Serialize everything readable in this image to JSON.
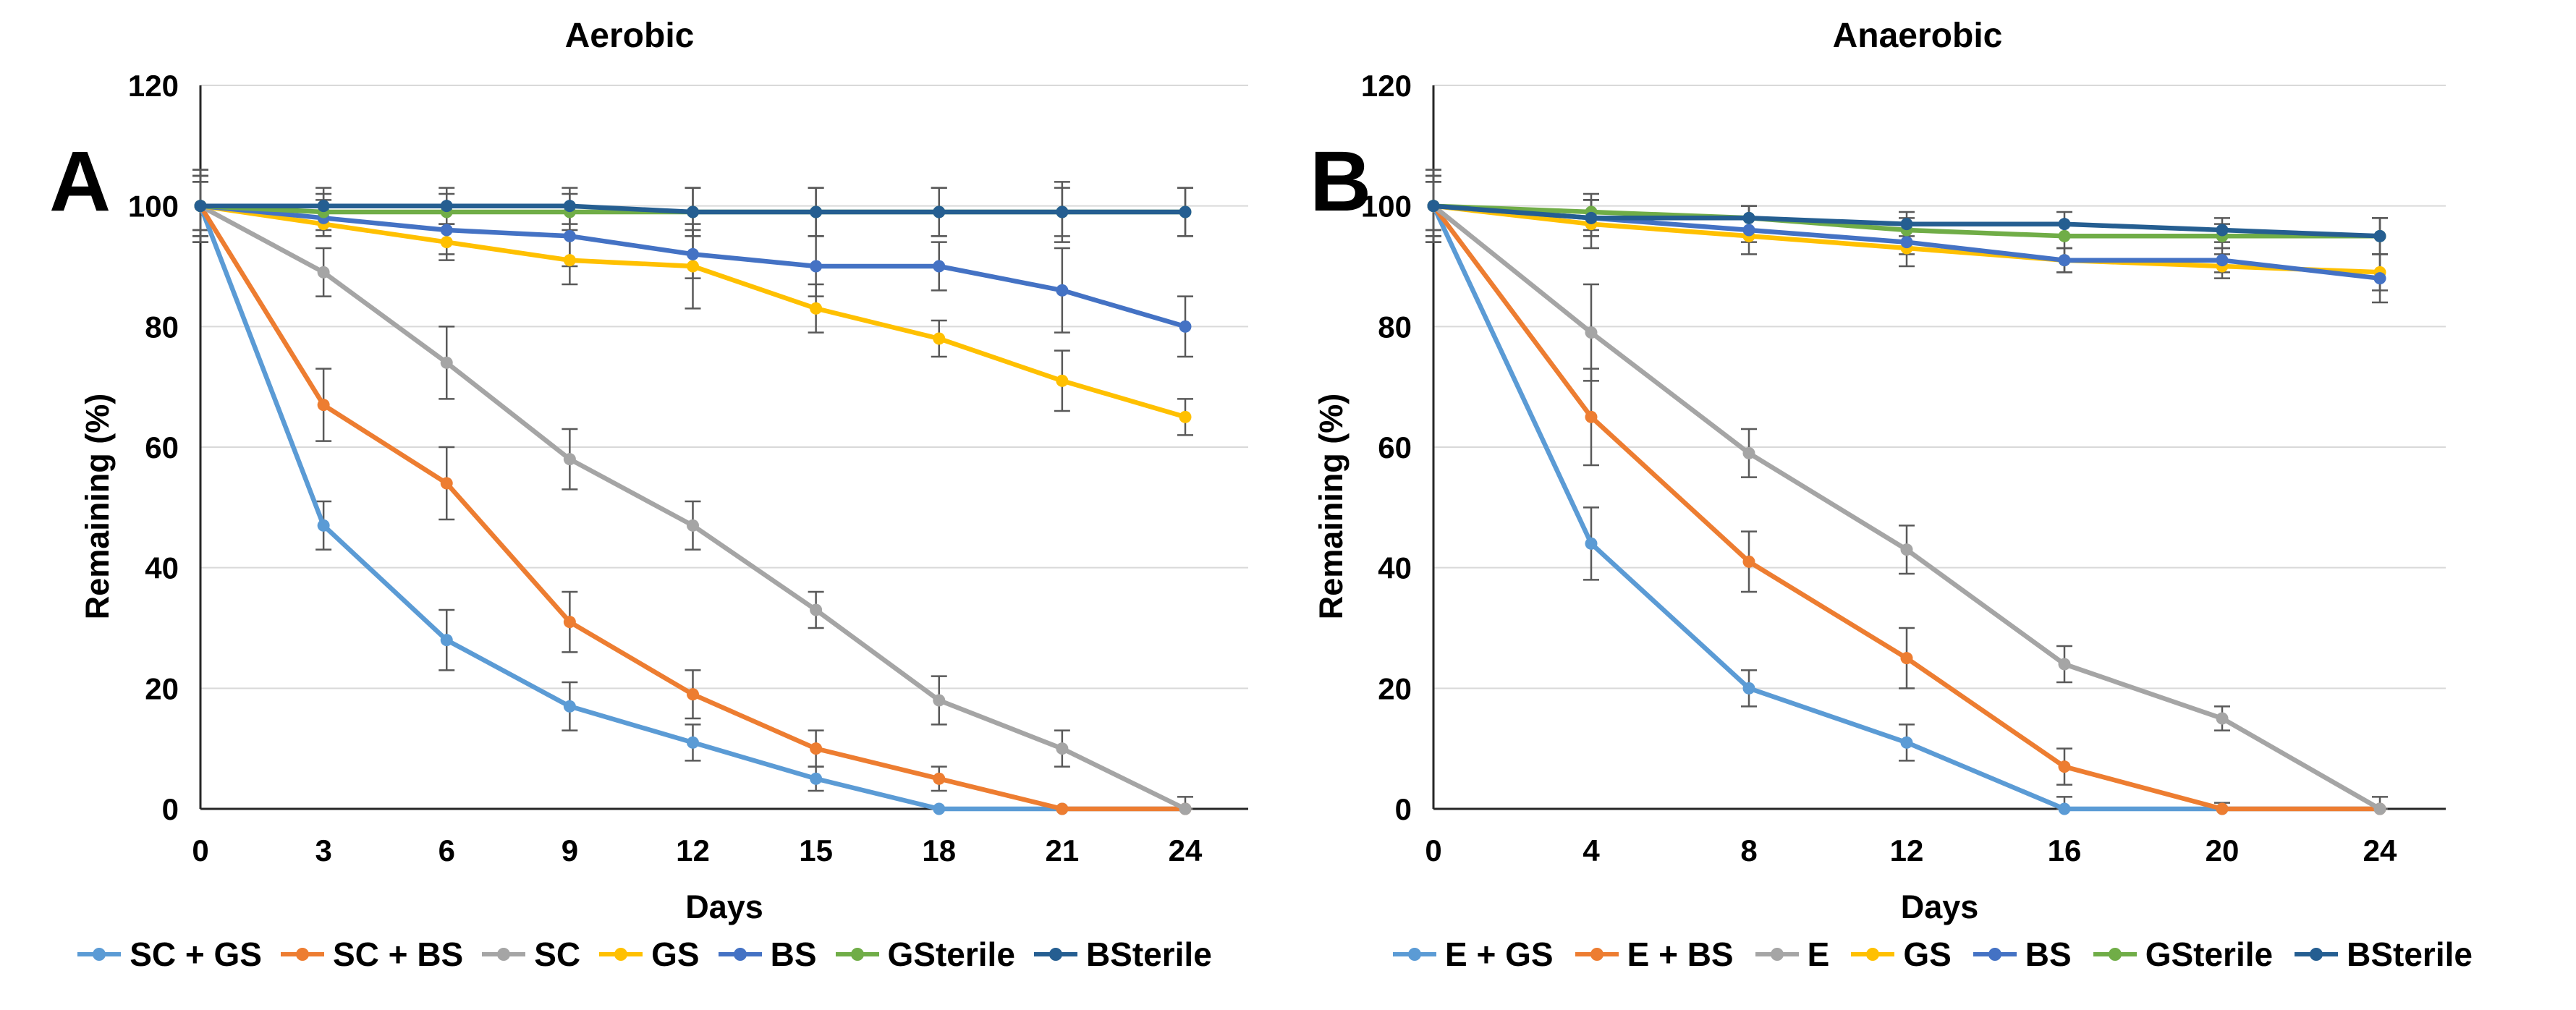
{
  "figure": {
    "background": "#ffffff",
    "error_bar_color": "#595959",
    "gridline_color": "#d9d9d9",
    "axis_color": "#262626"
  },
  "chart_data": [
    {
      "type": "line",
      "panel_label": "A",
      "title": "Aerobic",
      "xlabel": "Days",
      "ylabel": "Remaining (%)",
      "x": [
        0,
        3,
        6,
        9,
        12,
        15,
        18,
        21,
        24
      ],
      "xticks": [
        0,
        3,
        6,
        9,
        12,
        15,
        18,
        21,
        24
      ],
      "ylim": [
        0,
        120
      ],
      "yticks": [
        0,
        20,
        40,
        60,
        80,
        100,
        120
      ],
      "grid": "horizontal",
      "legend_position": "bottom",
      "series": [
        {
          "name": "SC + GS",
          "color": "#5B9BD5",
          "values": [
            100,
            47,
            28,
            17,
            11,
            5,
            0,
            0,
            0
          ],
          "errors": [
            6,
            4,
            5,
            4,
            3,
            2,
            0,
            0,
            0
          ]
        },
        {
          "name": "SC + BS",
          "color": "#ED7D31",
          "values": [
            100,
            67,
            54,
            31,
            19,
            10,
            5,
            0,
            0
          ],
          "errors": [
            6,
            6,
            6,
            5,
            4,
            3,
            2,
            0,
            0
          ]
        },
        {
          "name": "SC",
          "color": "#A5A5A5",
          "values": [
            100,
            89,
            74,
            58,
            47,
            33,
            18,
            10,
            0
          ],
          "errors": [
            5,
            4,
            6,
            5,
            4,
            3,
            4,
            3,
            2
          ]
        },
        {
          "name": "GS",
          "color": "#FFC000",
          "values": [
            100,
            97,
            94,
            91,
            90,
            83,
            78,
            71,
            65
          ],
          "errors": [
            5,
            2,
            3,
            4,
            7,
            4,
            3,
            5,
            3
          ]
        },
        {
          "name": "BS",
          "color": "#4472C4",
          "values": [
            100,
            98,
            96,
            95,
            92,
            90,
            90,
            86,
            80
          ],
          "errors": [
            5,
            3,
            4,
            5,
            4,
            5,
            4,
            7,
            5
          ]
        },
        {
          "name": "GSterile",
          "color": "#70AD47",
          "values": [
            100,
            99,
            99,
            99,
            99,
            99,
            99,
            99,
            99
          ],
          "errors": [
            4,
            3,
            3,
            3,
            4,
            4,
            4,
            4,
            4
          ]
        },
        {
          "name": "BSterile",
          "color": "#255E91",
          "values": [
            100,
            100,
            100,
            100,
            99,
            99,
            99,
            99,
            99
          ],
          "errors": [
            4,
            3,
            3,
            3,
            4,
            4,
            4,
            5,
            4
          ]
        }
      ]
    },
    {
      "type": "line",
      "panel_label": "B",
      "title": "Anaerobic",
      "xlabel": "Days",
      "ylabel": "Remaining (%)",
      "x": [
        0,
        4,
        8,
        12,
        16,
        20,
        24
      ],
      "xticks": [
        0,
        4,
        8,
        12,
        16,
        20,
        24
      ],
      "ylim": [
        0,
        120
      ],
      "yticks": [
        0,
        20,
        40,
        60,
        80,
        100,
        120
      ],
      "grid": "horizontal",
      "legend_position": "bottom",
      "series": [
        {
          "name": "E + GS",
          "color": "#5B9BD5",
          "values": [
            100,
            44,
            20,
            11,
            0,
            0,
            0
          ],
          "errors": [
            6,
            6,
            3,
            3,
            2,
            0,
            0
          ]
        },
        {
          "name": "E + BS",
          "color": "#ED7D31",
          "values": [
            100,
            65,
            41,
            25,
            7,
            0,
            0
          ],
          "errors": [
            6,
            8,
            5,
            5,
            3,
            1,
            0
          ]
        },
        {
          "name": "E",
          "color": "#A5A5A5",
          "values": [
            100,
            79,
            59,
            43,
            24,
            15,
            0
          ],
          "errors": [
            5,
            8,
            4,
            4,
            3,
            2,
            2
          ]
        },
        {
          "name": "GS",
          "color": "#FFC000",
          "values": [
            100,
            97,
            95,
            93,
            91,
            90,
            89
          ],
          "errors": [
            5,
            4,
            3,
            3,
            2,
            2,
            3
          ]
        },
        {
          "name": "BS",
          "color": "#4472C4",
          "values": [
            100,
            98,
            96,
            94,
            91,
            91,
            88
          ],
          "errors": [
            5,
            3,
            2,
            2,
            2,
            2,
            4
          ]
        },
        {
          "name": "GSterile",
          "color": "#70AD47",
          "values": [
            100,
            99,
            98,
            96,
            95,
            95,
            95
          ],
          "errors": [
            4,
            3,
            2,
            2,
            2,
            2,
            3
          ]
        },
        {
          "name": "BSterile",
          "color": "#255E91",
          "values": [
            100,
            98,
            98,
            97,
            97,
            96,
            95
          ],
          "errors": [
            4,
            3,
            2,
            2,
            2,
            2,
            3
          ]
        }
      ]
    }
  ]
}
